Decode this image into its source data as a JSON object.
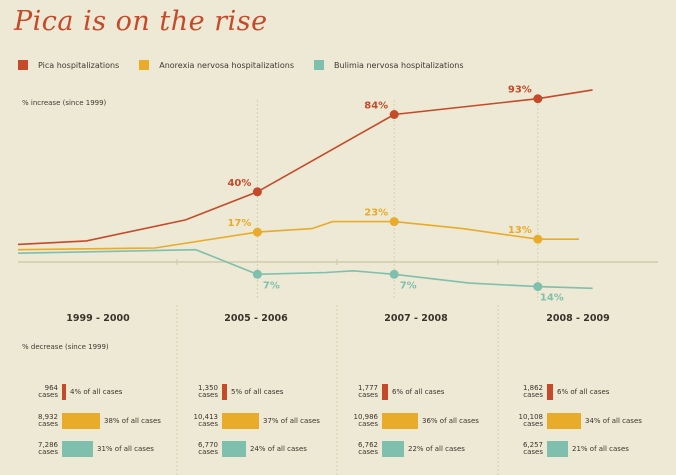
{
  "title": "Pica is on the rise",
  "legend": [
    {
      "label": "Pica hospitalizations",
      "color": "#c44a2a"
    },
    {
      "label": "Anorexia nervosa hospitalizations",
      "color": "#e8ab2a"
    },
    {
      "label": "Bulimia nervosa hospitalizations",
      "color": "#7fbfad"
    }
  ],
  "axis_increase": "% increase (since 1999)",
  "axis_decrease": "% decrease (since 1999)",
  "chart_data": {
    "type": "line",
    "title": "Pica is on the rise",
    "ylabel_top": "% increase (since 1999)",
    "ylabel_bottom": "% decrease (since 1999)",
    "categories": [
      "1999 - 2000",
      "2005 - 2006",
      "2007 - 2008",
      "2008 - 2009"
    ],
    "ylim": [
      -40,
      105
    ],
    "series": [
      {
        "name": "Pica hospitalizations",
        "color": "#c44a2a",
        "points": [
          [
            0,
            10
          ],
          [
            1,
            12
          ],
          [
            2.45,
            24
          ],
          [
            3.5,
            40
          ],
          [
            5.5,
            84
          ],
          [
            7.6,
            93
          ],
          [
            8.4,
            98
          ]
        ],
        "labels": [
          {
            "x": 3.5,
            "y": 40,
            "text": "40%"
          },
          {
            "x": 5.5,
            "y": 84,
            "text": "84%"
          },
          {
            "x": 7.6,
            "y": 93,
            "text": "93%"
          }
        ]
      },
      {
        "name": "Anorexia nervosa hospitalizations",
        "color": "#e8ab2a",
        "points": [
          [
            0,
            7
          ],
          [
            2,
            8
          ],
          [
            3.5,
            17
          ],
          [
            4.3,
            19
          ],
          [
            4.6,
            23
          ],
          [
            5.4,
            23
          ],
          [
            5.5,
            23
          ],
          [
            6.5,
            19
          ],
          [
            7.6,
            13
          ],
          [
            8.2,
            13
          ]
        ],
        "labels": [
          {
            "x": 3.5,
            "y": 17,
            "text": "17%"
          },
          {
            "x": 5.5,
            "y": 23,
            "text": "23%"
          },
          {
            "x": 7.6,
            "y": 13,
            "text": "13%"
          }
        ]
      },
      {
        "name": "Bulimia nervosa hospitalizations",
        "color": "#7fbfad",
        "points": [
          [
            0,
            5
          ],
          [
            2.6,
            7
          ],
          [
            3.5,
            -7
          ],
          [
            4.5,
            -6
          ],
          [
            4.9,
            -5
          ],
          [
            5.5,
            -7
          ],
          [
            6.6,
            -12
          ],
          [
            7.6,
            -14
          ],
          [
            8.4,
            -15
          ]
        ],
        "labels": [
          {
            "x": 3.5,
            "y": -7,
            "text": "7%"
          },
          {
            "x": 5.5,
            "y": -7,
            "text": "7%"
          },
          {
            "x": 7.6,
            "y": -14,
            "text": "14%"
          }
        ]
      }
    ]
  },
  "periods": [
    {
      "label": "1999 - 2000",
      "rows": [
        {
          "cases": "964",
          "unit": "cases",
          "pct": 4,
          "text": "4% of all cases",
          "color": "#c44a2a"
        },
        {
          "cases": "8,932",
          "unit": "cases",
          "pct": 38,
          "text": "38% of all cases",
          "color": "#e8ab2a"
        },
        {
          "cases": "7,286",
          "unit": "cases",
          "pct": 31,
          "text": "31% of all cases",
          "color": "#7fbfad"
        }
      ]
    },
    {
      "label": "2005 - 2006",
      "rows": [
        {
          "cases": "1,350",
          "unit": "cases",
          "pct": 5,
          "text": "5% of all cases",
          "color": "#c44a2a"
        },
        {
          "cases": "10,413",
          "unit": "cases",
          "pct": 37,
          "text": "37% of all cases",
          "color": "#e8ab2a"
        },
        {
          "cases": "6,770",
          "unit": "cases",
          "pct": 24,
          "text": "24% of all cases",
          "color": "#7fbfad"
        }
      ]
    },
    {
      "label": "2007 - 2008",
      "rows": [
        {
          "cases": "1,777",
          "unit": "cases",
          "pct": 6,
          "text": "6% of all cases",
          "color": "#c44a2a"
        },
        {
          "cases": "10,986",
          "unit": "cases",
          "pct": 36,
          "text": "36% of all cases",
          "color": "#e8ab2a"
        },
        {
          "cases": "6,762",
          "unit": "cases",
          "pct": 22,
          "text": "22% of all cases",
          "color": "#7fbfad"
        }
      ]
    },
    {
      "label": "2008 - 2009",
      "rows": [
        {
          "cases": "1,862",
          "unit": "cases",
          "pct": 6,
          "text": "6% of all cases",
          "color": "#c44a2a"
        },
        {
          "cases": "10,108",
          "unit": "cases",
          "pct": 34,
          "text": "34% of all cases",
          "color": "#e8ab2a"
        },
        {
          "cases": "6,257",
          "unit": "cases",
          "pct": 21,
          "text": "21% of all cases",
          "color": "#7fbfad"
        }
      ]
    }
  ]
}
